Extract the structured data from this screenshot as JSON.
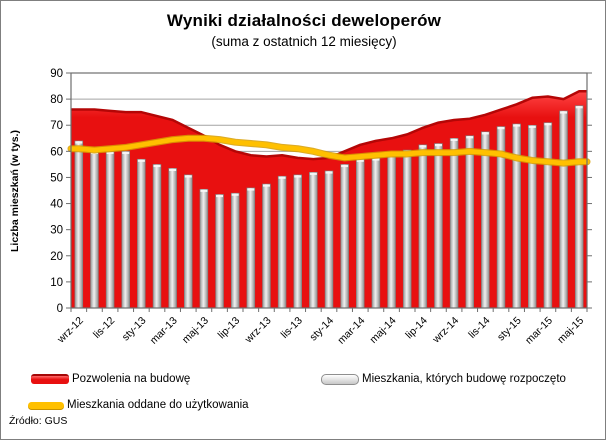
{
  "title": "Wyniki działalności deweloperów",
  "subtitle": "(suma z ostatnich 12 miesięcy)",
  "source": "Źródło: GUS",
  "chart_data": {
    "type": "combo",
    "title": "Wyniki działalności deweloperów (suma z ostatnich 12 miesięcy)",
    "ylabel": "Liczba mieszkań (w tys.)",
    "ylim": [
      0,
      90
    ],
    "ytick_step": 10,
    "grid": true,
    "legend_position": "bottom",
    "n_points": 33,
    "x_labels": [
      "wrz-12",
      "lis-12",
      "sty-13",
      "mar-13",
      "maj-13",
      "lip-13",
      "wrz-13",
      "lis-13",
      "sty-14",
      "mar-14",
      "maj-14",
      "lip-14",
      "wrz-14",
      "lis-14",
      "sty-15",
      "mar-15",
      "maj-15"
    ],
    "x_label_every": 2,
    "series": [
      {
        "name": "Pozwolenia na budowę",
        "type": "area",
        "color": "#e81010",
        "edge_color": "#b40606",
        "values": [
          76,
          76,
          75.5,
          75,
          75,
          73.5,
          72,
          69,
          66,
          62.5,
          60,
          58.5,
          58,
          58.5,
          57.5,
          57,
          57.5,
          60,
          62.5,
          64,
          65,
          66.5,
          69,
          71,
          72,
          72.5,
          74,
          76,
          78,
          80.5,
          81,
          80,
          83
        ]
      },
      {
        "name": "Mieszkania, których budowę rozpoczęto",
        "type": "bar",
        "color": "#c8c8c8",
        "values": [
          64,
          60,
          60,
          60,
          57,
          55,
          53.5,
          51,
          45.5,
          43.5,
          44,
          46,
          47.5,
          50.5,
          51,
          52,
          52.5,
          55,
          57,
          57.5,
          59.5,
          60.5,
          62.5,
          63,
          65,
          66,
          67.5,
          69.5,
          70.5,
          70,
          71,
          75.5,
          77.5
        ]
      },
      {
        "name": "Mieszkania oddane do użytkowania",
        "type": "line",
        "color": "#ffc000",
        "values": [
          61,
          60.5,
          61,
          61.5,
          62.5,
          63.5,
          64.5,
          65,
          65,
          64.5,
          63.5,
          63,
          62.5,
          61.5,
          61,
          60,
          58.5,
          57.5,
          58,
          58.5,
          59,
          59,
          59.5,
          59.5,
          59.5,
          60,
          59.5,
          59,
          57.5,
          56.5,
          56,
          55.5,
          56
        ]
      }
    ]
  }
}
